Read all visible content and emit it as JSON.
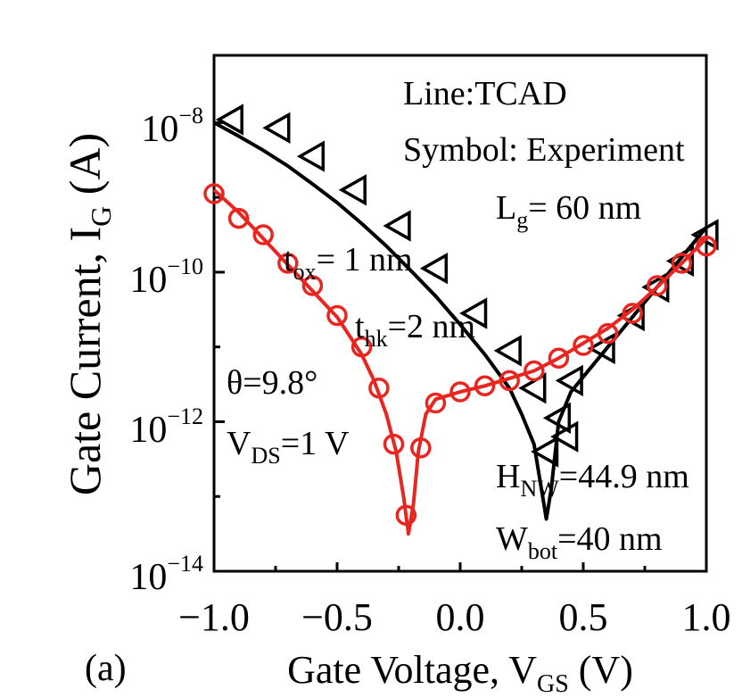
{
  "chart_data": {
    "type": "line",
    "panel_label": "(a)",
    "xlabel": "Gate Voltage, V",
    "xlabel_sub": "GS",
    "xlabel_unit": " (V)",
    "ylabel": "Gate Current, I",
    "ylabel_sub": "G",
    "ylabel_unit": " (A)",
    "xlim": [
      -1.0,
      1.0
    ],
    "ylim_log10": [
      -14,
      -7.1
    ],
    "y_scale": "log",
    "x_ticks": [
      {
        "value": -1.0,
        "label": "−1.0"
      },
      {
        "value": -0.5,
        "label": "−0.5"
      },
      {
        "value": 0.0,
        "label": "0.0"
      },
      {
        "value": 0.5,
        "label": "0.5"
      },
      {
        "value": 1.0,
        "label": "1.0"
      }
    ],
    "y_ticks": [
      {
        "exp": -8,
        "base": "10",
        "sup": "−8"
      },
      {
        "exp": -10,
        "base": "10",
        "sup": "−10"
      },
      {
        "exp": -12,
        "base": "10",
        "sup": "−12"
      },
      {
        "exp": -14,
        "base": "10",
        "sup": "−14"
      }
    ],
    "annotations": {
      "line_note": "Line:TCAD",
      "symbol_note": "Symbol: Experiment",
      "lg_main": "L",
      "lg_sub": "g",
      "lg_rest": "= 60 nm",
      "tox_main": "t",
      "tox_sub": "ox",
      "tox_rest": "= 1 nm",
      "thk_main": "t",
      "thk_sub": "hk",
      "thk_rest": "=2 nm",
      "theta": "θ=9.8°",
      "vds_main": "V",
      "vds_sub": "DS",
      "vds_rest": "=1 V",
      "hnw_main": "H",
      "hnw_sub": "NW",
      "hnw_rest": "=44.9 nm",
      "wbot_main": "W",
      "wbot_sub": "bot",
      "wbot_rest": "=40 nm"
    },
    "series": [
      {
        "style": "tcad-line",
        "color": "#000000",
        "points": [
          [
            -1.0,
            -8.0
          ],
          [
            -0.9,
            -8.18
          ],
          [
            -0.8,
            -8.37
          ],
          [
            -0.7,
            -8.58
          ],
          [
            -0.6,
            -8.82
          ],
          [
            -0.5,
            -9.07
          ],
          [
            -0.4,
            -9.35
          ],
          [
            -0.3,
            -9.65
          ],
          [
            -0.2,
            -9.98
          ],
          [
            -0.1,
            -10.32
          ],
          [
            0.0,
            -10.7
          ],
          [
            0.1,
            -11.1
          ],
          [
            0.2,
            -11.55
          ],
          [
            0.25,
            -11.9
          ],
          [
            0.3,
            -12.3
          ],
          [
            0.33,
            -12.9
          ],
          [
            0.35,
            -13.3
          ],
          [
            0.37,
            -12.9
          ],
          [
            0.4,
            -12.0
          ],
          [
            0.45,
            -11.6
          ],
          [
            0.5,
            -11.4
          ],
          [
            0.6,
            -11.0
          ],
          [
            0.7,
            -10.6
          ],
          [
            0.8,
            -10.2
          ],
          [
            0.9,
            -9.8
          ],
          [
            1.0,
            -9.4
          ]
        ]
      },
      {
        "style": "triangle-markers",
        "color": "#000000",
        "points": [
          [
            -0.93,
            -7.96
          ],
          [
            -0.74,
            -8.07
          ],
          [
            -0.6,
            -8.45
          ],
          [
            -0.43,
            -8.9
          ],
          [
            -0.25,
            -9.38
          ],
          [
            -0.1,
            -9.95
          ],
          [
            0.06,
            -10.55
          ],
          [
            0.2,
            -11.05
          ],
          [
            0.3,
            -11.55
          ],
          [
            0.35,
            -12.4
          ],
          [
            0.4,
            -11.95
          ],
          [
            0.43,
            -12.2
          ],
          [
            0.45,
            -11.45
          ],
          [
            0.58,
            -11.02
          ],
          [
            0.7,
            -10.58
          ],
          [
            0.8,
            -10.2
          ],
          [
            0.9,
            -9.85
          ],
          [
            1.0,
            -9.5
          ]
        ]
      },
      {
        "style": "tcad-line",
        "color": "#e8251f",
        "points": [
          [
            -1.0,
            -8.9
          ],
          [
            -0.9,
            -9.2
          ],
          [
            -0.8,
            -9.55
          ],
          [
            -0.7,
            -9.9
          ],
          [
            -0.6,
            -10.25
          ],
          [
            -0.5,
            -10.6
          ],
          [
            -0.45,
            -10.85
          ],
          [
            -0.4,
            -11.1
          ],
          [
            -0.35,
            -11.45
          ],
          [
            -0.3,
            -11.9
          ],
          [
            -0.26,
            -12.4
          ],
          [
            -0.23,
            -13.0
          ],
          [
            -0.21,
            -13.5
          ],
          [
            -0.19,
            -13.1
          ],
          [
            -0.17,
            -12.4
          ],
          [
            -0.14,
            -11.9
          ],
          [
            -0.1,
            -11.7
          ],
          [
            0.0,
            -11.6
          ],
          [
            0.1,
            -11.52
          ],
          [
            0.2,
            -11.42
          ],
          [
            0.3,
            -11.32
          ],
          [
            0.4,
            -11.15
          ],
          [
            0.5,
            -10.95
          ],
          [
            0.6,
            -10.75
          ],
          [
            0.7,
            -10.5
          ],
          [
            0.8,
            -10.2
          ],
          [
            0.9,
            -9.88
          ],
          [
            1.0,
            -9.55
          ]
        ]
      },
      {
        "style": "circle-markers",
        "color": "#e8251f",
        "points": [
          [
            -1.0,
            -8.95
          ],
          [
            -0.9,
            -9.28
          ],
          [
            -0.8,
            -9.5
          ],
          [
            -0.7,
            -9.88
          ],
          [
            -0.6,
            -10.18
          ],
          [
            -0.5,
            -10.58
          ],
          [
            -0.4,
            -11.0
          ],
          [
            -0.33,
            -11.55
          ],
          [
            -0.27,
            -12.3
          ],
          [
            -0.22,
            -13.25
          ],
          [
            -0.16,
            -12.35
          ],
          [
            -0.1,
            -11.75
          ],
          [
            0.0,
            -11.6
          ],
          [
            0.1,
            -11.52
          ],
          [
            0.2,
            -11.45
          ],
          [
            0.3,
            -11.32
          ],
          [
            0.4,
            -11.15
          ],
          [
            0.5,
            -10.98
          ],
          [
            0.6,
            -10.82
          ],
          [
            0.7,
            -10.55
          ],
          [
            0.8,
            -10.18
          ],
          [
            0.9,
            -9.88
          ],
          [
            1.0,
            -9.65
          ]
        ]
      }
    ]
  }
}
